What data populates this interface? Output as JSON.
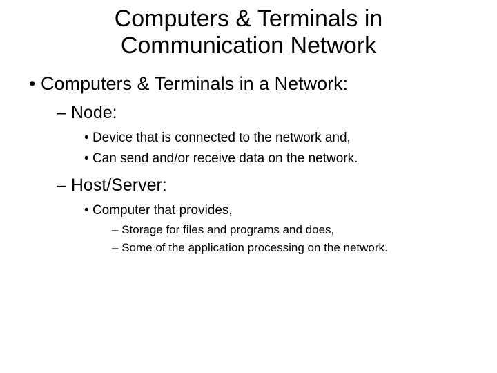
{
  "slide": {
    "title": "Computers & Terminals in Communication Network",
    "background_color": "#ffffff",
    "text_color": "#000000",
    "font_family": "Arial",
    "items": [
      {
        "level": 1,
        "marker": "dot",
        "text": "Computers & Terminals in a Network:",
        "fontsize": 27
      },
      {
        "level": 2,
        "marker": "dash",
        "text": "Node:",
        "fontsize": 25
      },
      {
        "level": 3,
        "marker": "dot",
        "text": "Device that is connected to the network and,",
        "fontsize": 19
      },
      {
        "level": 3,
        "marker": "dot",
        "text": "Can send and/or receive data on the network.",
        "fontsize": 19
      },
      {
        "level": 2,
        "marker": "dash",
        "text": "Host/Server:",
        "fontsize": 25
      },
      {
        "level": 3,
        "marker": "dot",
        "text": "Computer that provides,",
        "fontsize": 19
      },
      {
        "level": 4,
        "marker": "dash",
        "text": "Storage for files and programs and does,",
        "fontsize": 17
      },
      {
        "level": 4,
        "marker": "dash",
        "text": "Some of the application processing on the network.",
        "fontsize": 17
      }
    ]
  }
}
